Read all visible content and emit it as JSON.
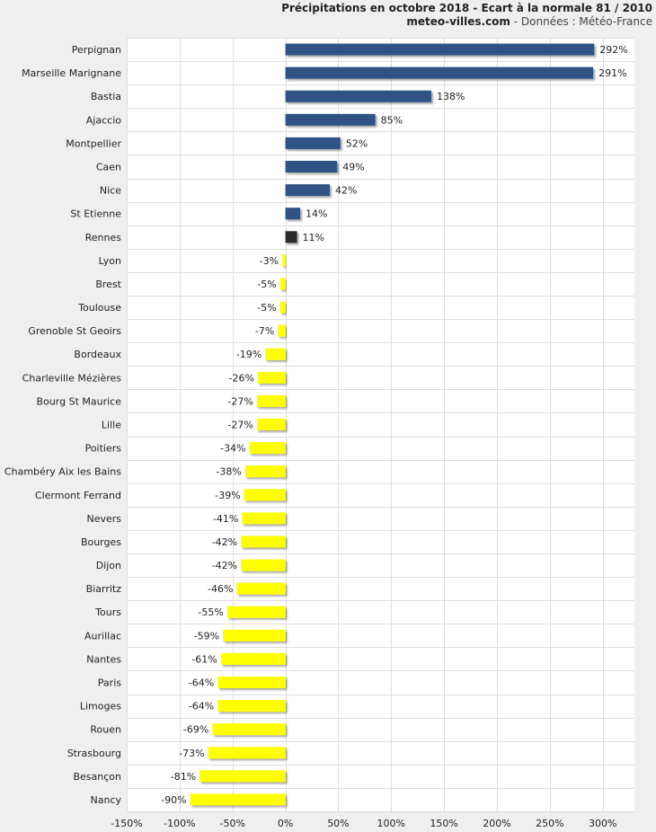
{
  "header": {
    "title": "Précipitations en octobre 2018 - Ecart à la normale 81 / 2010",
    "source_site": "meteo-villes.com",
    "source_rest": " - Données : Météo-France"
  },
  "chart_data": {
    "type": "bar",
    "orientation": "horizontal",
    "categories": [
      "Perpignan",
      "Marseille Marignane",
      "Bastia",
      "Ajaccio",
      "Montpellier",
      "Caen",
      "Nice",
      "St Etienne",
      "Rennes",
      "Lyon",
      "Brest",
      "Toulouse",
      "Grenoble St Geoirs",
      "Bordeaux",
      "Charleville Mézières",
      "Bourg St Maurice",
      "Lille",
      "Poitiers",
      "Chambéry Aix les Bains",
      "Clermont Ferrand",
      "Nevers",
      "Bourges",
      "Dijon",
      "Biarritz",
      "Tours",
      "Aurillac",
      "Nantes",
      "Paris",
      "Limoges",
      "Rouen",
      "Strasbourg",
      "Besançon",
      "Nancy"
    ],
    "values": [
      292,
      291,
      138,
      85,
      52,
      49,
      42,
      14,
      11,
      -3,
      -5,
      -5,
      -7,
      -19,
      -26,
      -27,
      -27,
      -34,
      -38,
      -39,
      -41,
      -42,
      -42,
      -46,
      -55,
      -59,
      -61,
      -64,
      -64,
      -69,
      -73,
      -81,
      -90
    ],
    "labels": [
      "292%",
      "291%",
      "138%",
      "85%",
      "52%",
      "49%",
      "42%",
      "14%",
      "11%",
      "-3%",
      "-5%",
      "-5%",
      "-7%",
      "-19%",
      "-26%",
      "-27%",
      "-27%",
      "-34%",
      "-38%",
      "-39%",
      "-41%",
      "-42%",
      "-42%",
      "-46%",
      "-55%",
      "-59%",
      "-61%",
      "-64%",
      "-64%",
      "-69%",
      "-73%",
      "-81%",
      "-90%"
    ],
    "highlight_category": "Rennes",
    "xlim": [
      -150,
      330
    ],
    "xticks": [
      -150,
      -100,
      -50,
      0,
      50,
      100,
      150,
      200,
      250,
      300
    ],
    "xtick_labels": [
      "-150%",
      "-100%",
      "-50%",
      "0%",
      "50%",
      "100%",
      "150%",
      "200%",
      "250%",
      "300%"
    ],
    "grid": true,
    "colors": {
      "positive": "#2e5384",
      "negative": "#ffff00",
      "highlight": "#2b2b2b",
      "grid": "#dddddd",
      "plot_background": "#ffffff",
      "page_background": "#efefef"
    }
  }
}
